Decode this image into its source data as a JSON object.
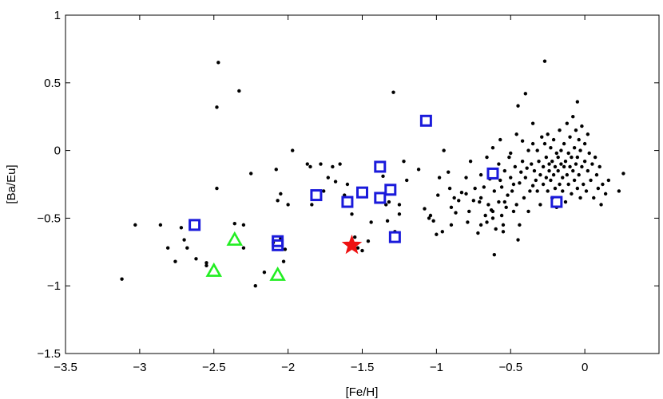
{
  "chart_data": {
    "type": "scatter",
    "xlabel": "[Fe/H]",
    "ylabel": "[Ba/Eu]",
    "xlim": [
      -3.5,
      0.5
    ],
    "ylim": [
      -1.5,
      1
    ],
    "xticks": [
      -3.5,
      -3,
      -2.5,
      -2,
      -1.5,
      -1,
      -0.5,
      0
    ],
    "xtick_labels": [
      "−3.5",
      "−3",
      "−2.5",
      "−2",
      "−1.5",
      "−1",
      "−0.5",
      "0"
    ],
    "yticks": [
      -1.5,
      -1,
      -0.5,
      0,
      0.5,
      1
    ],
    "ytick_labels": [
      "−1.5",
      "−1",
      "−0.5",
      "0",
      "0.5",
      "1"
    ],
    "grid": false,
    "colors": {
      "dots": "#000000",
      "squares": "#1a1adb",
      "triangles": "#22ee22",
      "star": "#ee1111"
    },
    "series": [
      {
        "marker": "dot",
        "points": [
          [
            -3.12,
            -0.95
          ],
          [
            -3.03,
            -0.55
          ],
          [
            -2.86,
            -0.55
          ],
          [
            -2.81,
            -0.72
          ],
          [
            -2.76,
            -0.82
          ],
          [
            -2.72,
            -0.57
          ],
          [
            -2.7,
            -0.66
          ],
          [
            -2.68,
            -0.72
          ],
          [
            -2.62,
            -0.8
          ],
          [
            -2.55,
            -0.83
          ],
          [
            -2.55,
            -0.85
          ],
          [
            -2.48,
            -0.28
          ],
          [
            -2.48,
            0.32
          ],
          [
            -2.47,
            0.65
          ],
          [
            -2.36,
            -0.54
          ],
          [
            -2.33,
            0.44
          ],
          [
            -2.3,
            -0.55
          ],
          [
            -2.3,
            -0.72
          ],
          [
            -2.25,
            -0.17
          ],
          [
            -2.22,
            -1.0
          ],
          [
            -2.16,
            -0.9
          ],
          [
            -2.1,
            -0.68
          ],
          [
            -2.08,
            -0.14
          ],
          [
            -2.07,
            -0.37
          ],
          [
            -2.05,
            -0.65
          ],
          [
            -2.05,
            -0.32
          ],
          [
            -2.03,
            -0.82
          ],
          [
            -2.02,
            -0.73
          ],
          [
            -2.0,
            -0.4
          ],
          [
            -1.97,
            0.0
          ],
          [
            -1.87,
            -0.1
          ],
          [
            -1.85,
            -0.12
          ],
          [
            -1.84,
            -0.4
          ],
          [
            -1.78,
            -0.1
          ],
          [
            -1.76,
            -0.3
          ],
          [
            -1.73,
            -0.2
          ],
          [
            -1.7,
            -0.12
          ],
          [
            -1.68,
            -0.23
          ],
          [
            -1.65,
            -0.1
          ],
          [
            -1.62,
            -0.33
          ],
          [
            -1.6,
            -0.25
          ],
          [
            -1.57,
            -0.47
          ],
          [
            -1.55,
            -0.64
          ],
          [
            -1.53,
            -0.72
          ],
          [
            -1.5,
            -0.74
          ],
          [
            -1.46,
            -0.67
          ],
          [
            -1.44,
            -0.53
          ],
          [
            -1.36,
            -0.19
          ],
          [
            -1.34,
            -0.4
          ],
          [
            -1.33,
            -0.52
          ],
          [
            -1.32,
            -0.38
          ],
          [
            -1.29,
            0.43
          ],
          [
            -1.28,
            -0.6
          ],
          [
            -1.25,
            -0.47
          ],
          [
            -1.25,
            -0.4
          ],
          [
            -1.22,
            -0.08
          ],
          [
            -1.2,
            -0.22
          ],
          [
            -1.12,
            -0.14
          ],
          [
            -1.08,
            -0.43
          ],
          [
            -1.05,
            -0.5
          ],
          [
            -1.04,
            -0.48
          ],
          [
            -1.02,
            -0.52
          ],
          [
            -1.0,
            -0.62
          ],
          [
            -0.99,
            -0.33
          ],
          [
            -0.98,
            -0.2
          ],
          [
            -0.96,
            -0.6
          ],
          [
            -0.92,
            -0.16
          ],
          [
            -0.91,
            -0.28
          ],
          [
            -0.9,
            -0.55
          ],
          [
            -0.88,
            -0.35
          ],
          [
            -0.87,
            -0.46
          ],
          [
            -0.85,
            -0.37
          ],
          [
            -0.83,
            -0.31
          ],
          [
            -0.8,
            -0.32
          ],
          [
            -0.79,
            -0.53
          ],
          [
            -0.78,
            -0.45
          ],
          [
            -0.75,
            -0.37
          ],
          [
            -0.74,
            -0.28
          ],
          [
            -0.72,
            -0.61
          ],
          [
            -0.71,
            -0.38
          ],
          [
            -0.7,
            -0.55
          ],
          [
            -0.7,
            -0.35
          ],
          [
            -0.68,
            -0.27
          ],
          [
            -0.67,
            -0.48
          ],
          [
            -0.66,
            -0.53
          ],
          [
            -0.65,
            -0.4
          ],
          [
            -0.64,
            -0.21
          ],
          [
            -0.63,
            -0.44
          ],
          [
            -0.62,
            -0.45
          ],
          [
            -0.62,
            -0.5
          ],
          [
            -0.61,
            -0.3
          ],
          [
            -0.61,
            -0.77
          ],
          [
            -0.6,
            -0.58
          ],
          [
            -0.58,
            -0.38
          ],
          [
            -0.58,
            -0.1
          ],
          [
            -0.57,
            -0.22
          ],
          [
            -0.56,
            -0.27
          ],
          [
            -0.56,
            -0.48
          ],
          [
            -0.55,
            -0.55
          ],
          [
            -0.55,
            -0.6
          ],
          [
            -0.54,
            -0.15
          ],
          [
            -0.53,
            -0.42
          ],
          [
            -0.52,
            -0.33
          ],
          [
            -0.51,
            -0.05
          ],
          [
            -0.5,
            -0.2
          ],
          [
            -0.49,
            -0.3
          ],
          [
            -0.48,
            -0.25
          ],
          [
            -0.47,
            -0.12
          ],
          [
            -0.46,
            -0.4
          ],
          [
            -0.46,
            0.12
          ],
          [
            -0.45,
            -0.66
          ],
          [
            -0.44,
            -0.24
          ],
          [
            -0.43,
            -0.16
          ],
          [
            -0.42,
            -0.08
          ],
          [
            -0.41,
            -0.35
          ],
          [
            -0.4,
            -0.2
          ],
          [
            -0.39,
            -0.13
          ],
          [
            -0.38,
            0.0
          ],
          [
            -0.37,
            -0.3
          ],
          [
            -0.36,
            -0.1
          ],
          [
            -0.35,
            0.05
          ],
          [
            -0.35,
            -0.26
          ],
          [
            -0.34,
            -0.15
          ],
          [
            -0.33,
            -0.22
          ],
          [
            -0.32,
            0.0
          ],
          [
            -0.32,
            -0.3
          ],
          [
            -0.31,
            -0.08
          ],
          [
            -0.3,
            -0.18
          ],
          [
            -0.3,
            -0.4
          ],
          [
            -0.29,
            0.1
          ],
          [
            -0.28,
            -0.12
          ],
          [
            -0.28,
            -0.25
          ],
          [
            -0.27,
            0.66
          ],
          [
            -0.27,
            0.05
          ],
          [
            -0.26,
            -0.2
          ],
          [
            -0.26,
            -0.05
          ],
          [
            -0.25,
            -0.3
          ],
          [
            -0.25,
            0.12
          ],
          [
            -0.24,
            -0.15
          ],
          [
            -0.24,
            -0.1
          ],
          [
            -0.23,
            0.02
          ],
          [
            -0.23,
            -0.22
          ],
          [
            -0.22,
            -0.35
          ],
          [
            -0.22,
            -0.08
          ],
          [
            -0.21,
            -0.18
          ],
          [
            -0.21,
            0.08
          ],
          [
            -0.2,
            -0.28
          ],
          [
            -0.2,
            -0.12
          ],
          [
            -0.19,
            -0.02
          ],
          [
            -0.19,
            -0.42
          ],
          [
            -0.18,
            -0.15
          ],
          [
            -0.18,
            -0.05
          ],
          [
            -0.17,
            0.15
          ],
          [
            -0.17,
            -0.25
          ],
          [
            -0.16,
            -0.1
          ],
          [
            -0.16,
            0.0
          ],
          [
            -0.15,
            -0.2
          ],
          [
            -0.15,
            -0.3
          ],
          [
            -0.14,
            0.05
          ],
          [
            -0.14,
            -0.12
          ],
          [
            -0.13,
            -0.08
          ],
          [
            -0.13,
            -0.38
          ],
          [
            -0.12,
            0.2
          ],
          [
            -0.12,
            -0.18
          ],
          [
            -0.11,
            -0.02
          ],
          [
            -0.11,
            -0.25
          ],
          [
            -0.1,
            -0.12
          ],
          [
            -0.1,
            0.1
          ],
          [
            -0.09,
            -0.05
          ],
          [
            -0.09,
            -0.32
          ],
          [
            -0.08,
            0.25
          ],
          [
            -0.08,
            -0.15
          ],
          [
            -0.07,
            0.02
          ],
          [
            -0.07,
            -0.22
          ],
          [
            -0.06,
            -0.1
          ],
          [
            -0.06,
            0.15
          ],
          [
            -0.05,
            -0.28
          ],
          [
            -0.05,
            -0.05
          ],
          [
            -0.04,
            0.08
          ],
          [
            -0.04,
            -0.18
          ],
          [
            -0.03,
            -0.35
          ],
          [
            -0.03,
            0.0
          ],
          [
            -0.02,
            0.18
          ],
          [
            -0.02,
            -0.12
          ],
          [
            -0.01,
            -0.25
          ],
          [
            0.0,
            -0.08
          ],
          [
            0.0,
            0.05
          ],
          [
            0.01,
            -0.3
          ],
          [
            0.02,
            -0.15
          ],
          [
            0.02,
            0.12
          ],
          [
            0.03,
            -0.02
          ],
          [
            0.04,
            -0.22
          ],
          [
            0.05,
            -0.1
          ],
          [
            0.06,
            -0.35
          ],
          [
            0.07,
            -0.05
          ],
          [
            0.08,
            -0.18
          ],
          [
            0.09,
            -0.28
          ],
          [
            0.1,
            -0.12
          ],
          [
            0.11,
            -0.4
          ],
          [
            0.12,
            -0.25
          ],
          [
            0.14,
            -0.32
          ],
          [
            0.16,
            -0.22
          ],
          [
            0.23,
            -0.3
          ],
          [
            0.26,
            -0.17
          ],
          [
            -0.4,
            0.42
          ],
          [
            -0.35,
            0.2
          ],
          [
            -0.05,
            0.36
          ],
          [
            -0.62,
            0.02
          ],
          [
            -0.45,
            0.33
          ],
          [
            -0.7,
            -0.18
          ],
          [
            -0.8,
            -0.2
          ],
          [
            -0.9,
            -0.42
          ],
          [
            -0.77,
            -0.08
          ],
          [
            -0.66,
            -0.05
          ],
          [
            -0.54,
            -0.38
          ],
          [
            -0.5,
            -0.02
          ],
          [
            -0.95,
            0.0
          ],
          [
            -0.57,
            0.08
          ],
          [
            -0.48,
            -0.45
          ],
          [
            -0.44,
            -0.55
          ],
          [
            -0.42,
            0.07
          ],
          [
            -0.38,
            -0.45
          ]
        ]
      },
      {
        "marker": "square",
        "points": [
          [
            -2.63,
            -0.55
          ],
          [
            -2.07,
            -0.67
          ],
          [
            -2.07,
            -0.7
          ],
          [
            -1.81,
            -0.33
          ],
          [
            -1.6,
            -0.38
          ],
          [
            -1.5,
            -0.31
          ],
          [
            -1.38,
            -0.35
          ],
          [
            -1.38,
            -0.12
          ],
          [
            -1.31,
            -0.29
          ],
          [
            -1.28,
            -0.64
          ],
          [
            -1.07,
            0.22
          ],
          [
            -0.62,
            -0.17
          ],
          [
            -0.19,
            -0.38
          ]
        ]
      },
      {
        "marker": "triangle",
        "points": [
          [
            -2.5,
            -0.89
          ],
          [
            -2.36,
            -0.66
          ],
          [
            -2.07,
            -0.92
          ]
        ]
      },
      {
        "marker": "star",
        "points": [
          [
            -1.57,
            -0.7
          ]
        ]
      }
    ]
  }
}
